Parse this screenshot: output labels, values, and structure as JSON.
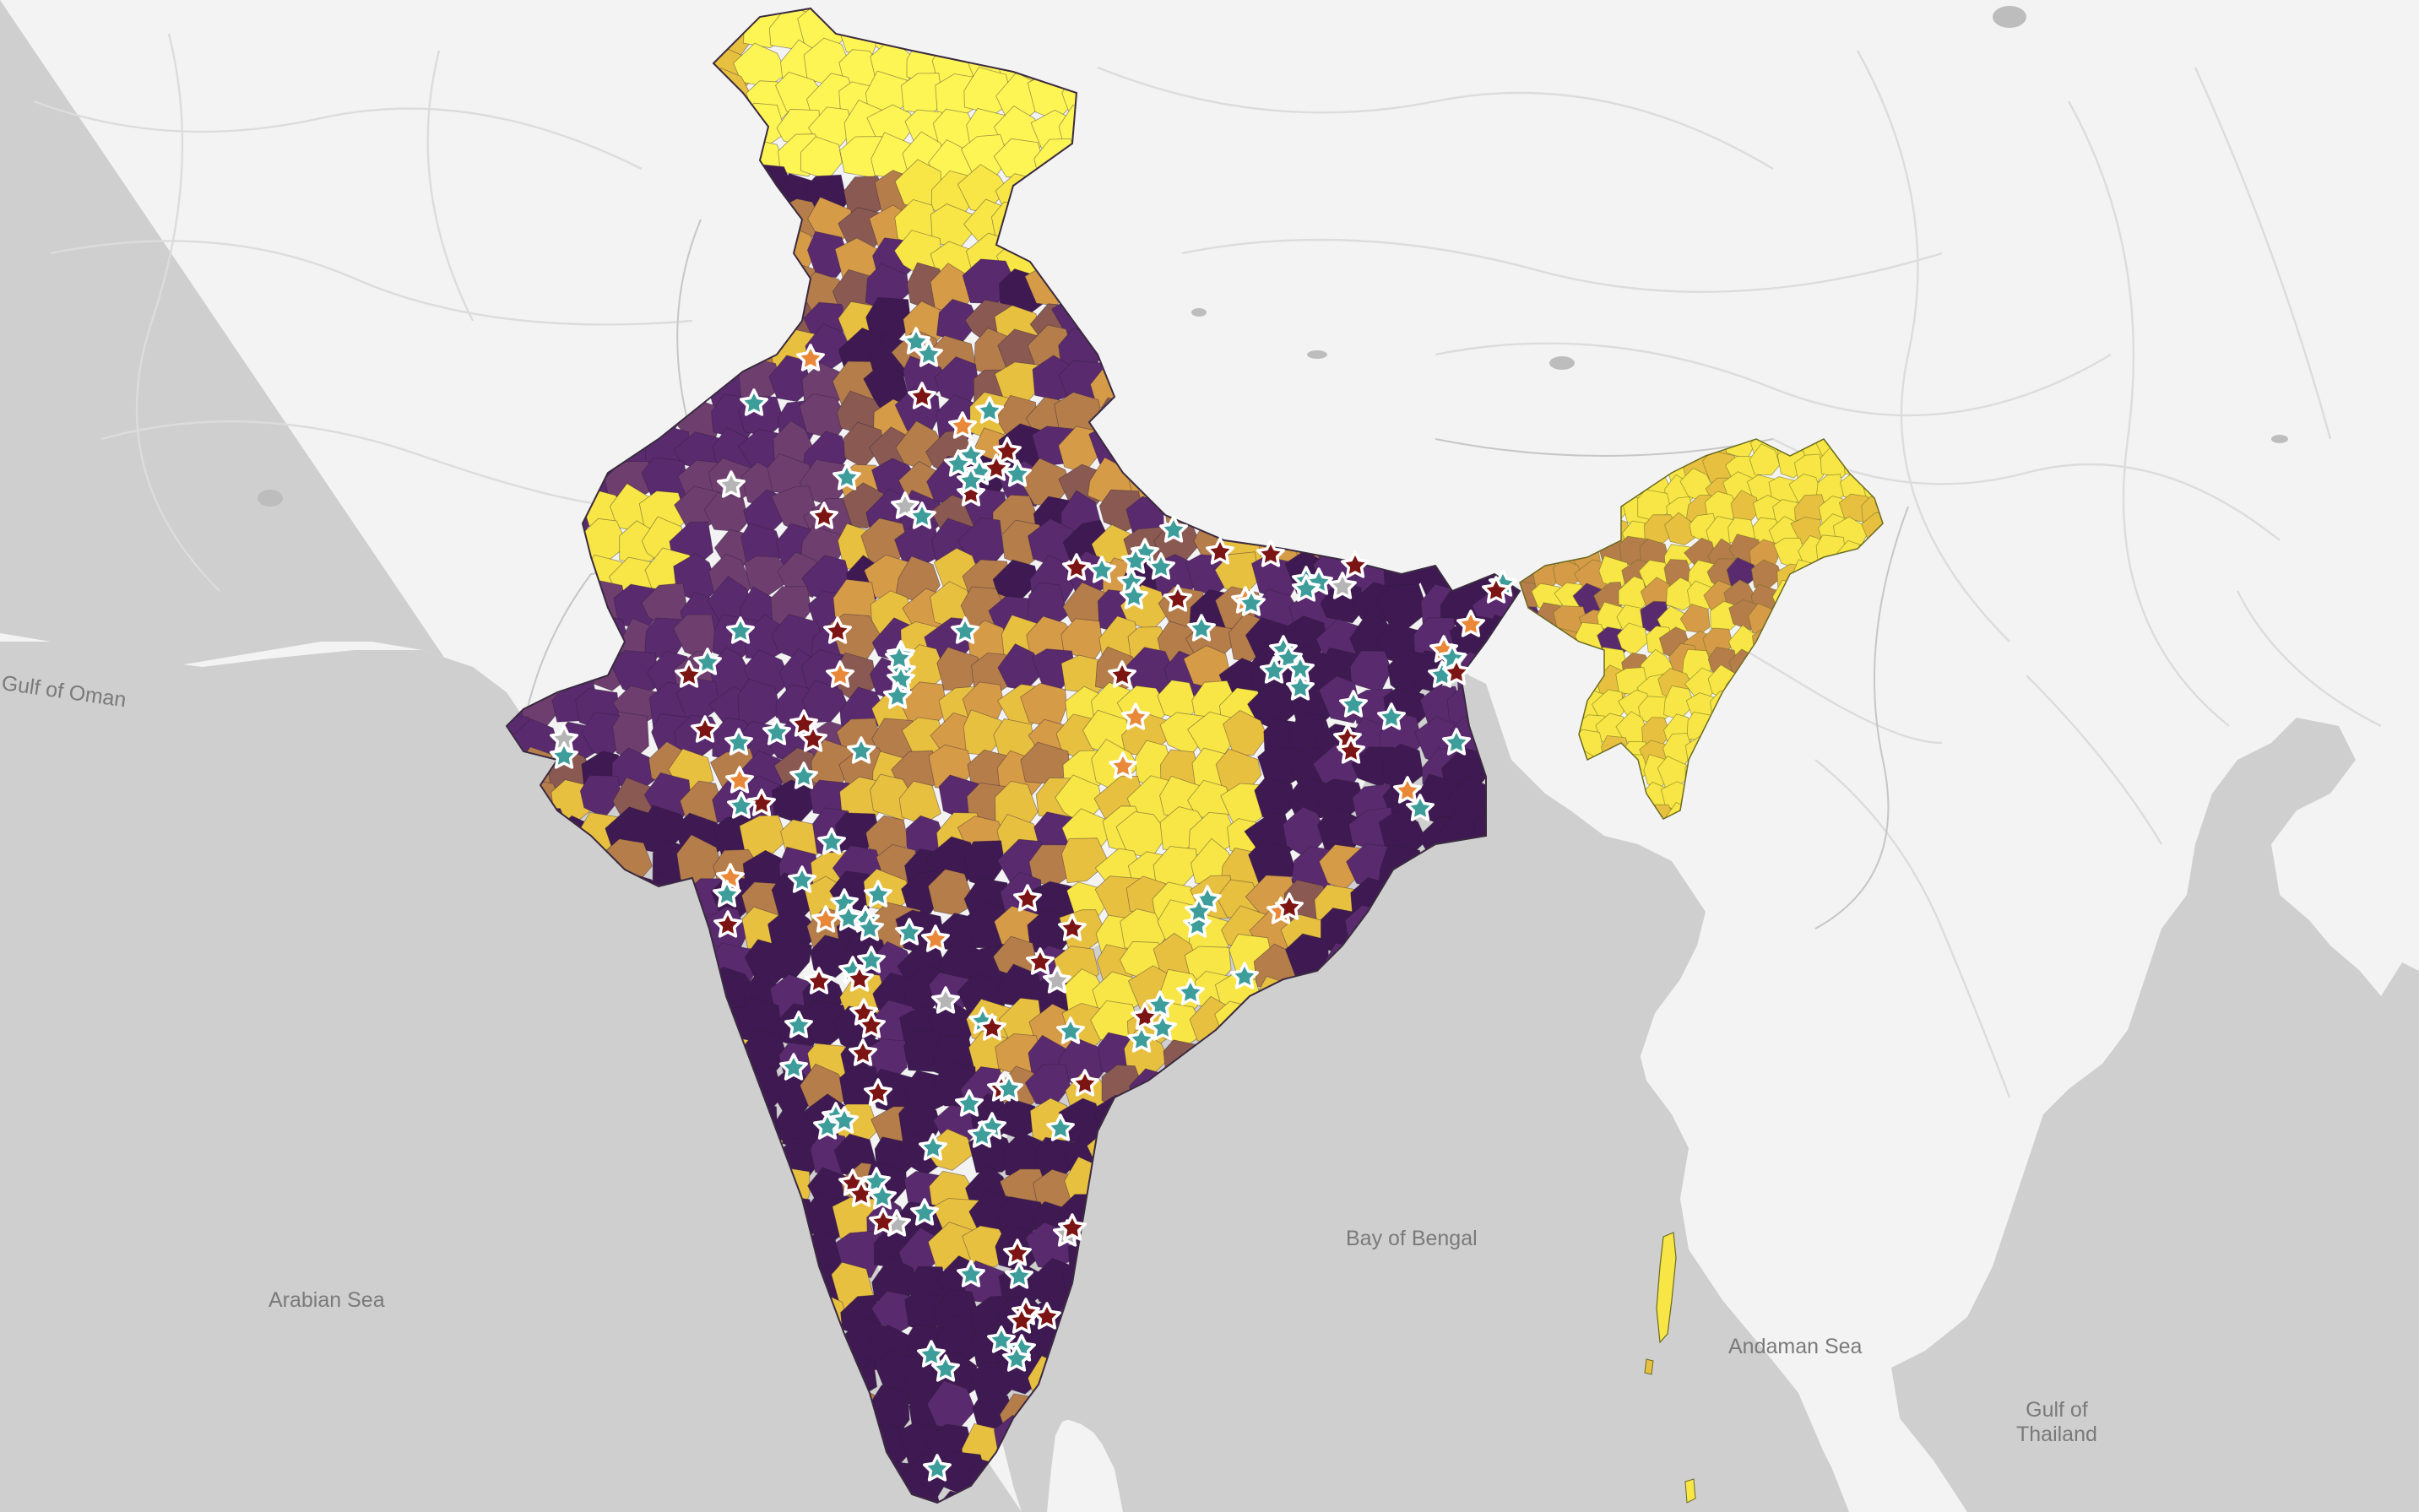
{
  "map": {
    "subject": "India district choropleth with site markers",
    "colors": {
      "water": "#cfcfcf",
      "land": "#f3f3f3",
      "choropleth_scale": [
        "#3f1a52",
        "#5a2a6e",
        "#6e3e6e",
        "#8a5a52",
        "#b57d4a",
        "#d69b47",
        "#e8c040",
        "#f7e645",
        "#fdf553"
      ],
      "marker_colors": {
        "teal": "#3d9d9b",
        "darkred": "#7d1414",
        "orange": "#e98838",
        "gray": "#b5b5b5"
      },
      "marker_outline": "#ffffff"
    },
    "water_labels": {
      "gulf_of_oman": "Gulf of Oman",
      "arabian_sea": "Arabian Sea",
      "bay_of_bengal": "Bay of Bengal",
      "andaman_sea": "Andaman Sea",
      "gulf_of_thailand_line1": "Gulf of",
      "gulf_of_thailand_line2": "Thailand"
    },
    "marker_icon": "star-marker-icon"
  }
}
